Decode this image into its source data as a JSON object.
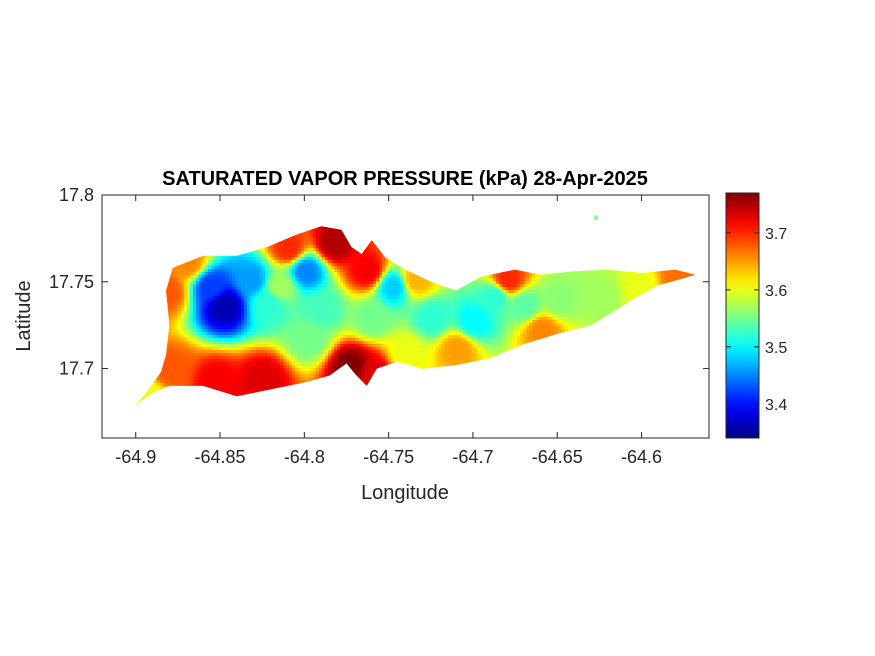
{
  "chart_data": {
    "type": "heatmap",
    "title": "SATURATED VAPOR PRESSURE (kPa) 28-Apr-2025",
    "xlabel": "Longitude",
    "ylabel": "Latitude",
    "xlim": [
      -64.92,
      -64.56
    ],
    "ylim": [
      17.66,
      17.8
    ],
    "xticks": [
      -64.9,
      -64.85,
      -64.8,
      -64.75,
      -64.7,
      -64.65,
      -64.6
    ],
    "xtick_labels": [
      "-64.9",
      "-64.85",
      "-64.8",
      "-64.75",
      "-64.7",
      "-64.65",
      "-64.6"
    ],
    "yticks": [
      17.7,
      17.75,
      17.8
    ],
    "ytick_labels": [
      "17.7",
      "17.75",
      "17.8"
    ],
    "colormap": "jet",
    "colorbar": {
      "range": [
        3.34,
        3.77
      ],
      "ticks": [
        3.4,
        3.5,
        3.6,
        3.7
      ],
      "tick_labels": [
        "3.4",
        "3.5",
        "3.6",
        "3.7"
      ],
      "placement": "right"
    },
    "grid": false,
    "island_outline": [
      [
        -64.9,
        17.679
      ],
      [
        -64.89,
        17.686
      ],
      [
        -64.88,
        17.69
      ],
      [
        -64.86,
        17.69
      ],
      [
        -64.84,
        17.684
      ],
      [
        -64.82,
        17.688
      ],
      [
        -64.8,
        17.692
      ],
      [
        -64.785,
        17.696
      ],
      [
        -64.775,
        17.703
      ],
      [
        -64.77,
        17.697
      ],
      [
        -64.763,
        17.69
      ],
      [
        -64.757,
        17.7
      ],
      [
        -64.745,
        17.704
      ],
      [
        -64.73,
        17.7
      ],
      [
        -64.71,
        17.702
      ],
      [
        -64.69,
        17.706
      ],
      [
        -64.67,
        17.714
      ],
      [
        -64.65,
        17.72
      ],
      [
        -64.63,
        17.725
      ],
      [
        -64.618,
        17.732
      ],
      [
        -64.605,
        17.74
      ],
      [
        -64.59,
        17.748
      ],
      [
        -64.575,
        17.752
      ],
      [
        -64.568,
        17.754
      ],
      [
        -64.58,
        17.757
      ],
      [
        -64.6,
        17.755
      ],
      [
        -64.62,
        17.757
      ],
      [
        -64.64,
        17.756
      ],
      [
        -64.66,
        17.754
      ],
      [
        -64.675,
        17.757
      ],
      [
        -64.695,
        17.753
      ],
      [
        -64.71,
        17.745
      ],
      [
        -64.725,
        17.75
      ],
      [
        -64.74,
        17.757
      ],
      [
        -64.752,
        17.764
      ],
      [
        -64.76,
        17.774
      ],
      [
        -64.766,
        17.766
      ],
      [
        -64.772,
        17.77
      ],
      [
        -64.778,
        17.78
      ],
      [
        -64.79,
        17.782
      ],
      [
        -64.805,
        17.777
      ],
      [
        -64.822,
        17.77
      ],
      [
        -64.84,
        17.765
      ],
      [
        -64.86,
        17.765
      ],
      [
        -64.878,
        17.758
      ],
      [
        -64.882,
        17.745
      ],
      [
        -64.88,
        17.725
      ],
      [
        -64.882,
        17.708
      ],
      [
        -64.885,
        17.698
      ],
      [
        -64.893,
        17.687
      ]
    ],
    "islet": [
      -64.627,
      17.787
    ],
    "field_points": [
      {
        "lon": -64.848,
        "lat": 17.737,
        "value": 3.36
      },
      {
        "lon": -64.856,
        "lat": 17.748,
        "value": 3.42
      },
      {
        "lon": -64.832,
        "lat": 17.752,
        "value": 3.46
      },
      {
        "lon": -64.8,
        "lat": 17.757,
        "value": 3.45
      },
      {
        "lon": -64.822,
        "lat": 17.738,
        "value": 3.52
      },
      {
        "lon": -64.79,
        "lat": 17.735,
        "value": 3.53
      },
      {
        "lon": -64.798,
        "lat": 17.718,
        "value": 3.55
      },
      {
        "lon": -64.76,
        "lat": 17.73,
        "value": 3.55
      },
      {
        "lon": -64.748,
        "lat": 17.748,
        "value": 3.48
      },
      {
        "lon": -64.725,
        "lat": 17.73,
        "value": 3.52
      },
      {
        "lon": -64.7,
        "lat": 17.728,
        "value": 3.5
      },
      {
        "lon": -64.688,
        "lat": 17.742,
        "value": 3.52
      },
      {
        "lon": -64.67,
        "lat": 17.737,
        "value": 3.54
      },
      {
        "lon": -64.65,
        "lat": 17.74,
        "value": 3.56
      },
      {
        "lon": -64.625,
        "lat": 17.742,
        "value": 3.57
      },
      {
        "lon": -64.6,
        "lat": 17.747,
        "value": 3.6
      },
      {
        "lon": -64.58,
        "lat": 17.752,
        "value": 3.67
      },
      {
        "lon": -64.783,
        "lat": 17.773,
        "value": 3.75
      },
      {
        "lon": -64.763,
        "lat": 17.757,
        "value": 3.72
      },
      {
        "lon": -64.773,
        "lat": 17.702,
        "value": 3.77
      },
      {
        "lon": -64.76,
        "lat": 17.698,
        "value": 3.73
      },
      {
        "lon": -64.853,
        "lat": 17.693,
        "value": 3.72
      },
      {
        "lon": -64.825,
        "lat": 17.695,
        "value": 3.73
      },
      {
        "lon": -64.88,
        "lat": 17.7,
        "value": 3.68
      },
      {
        "lon": -64.882,
        "lat": 17.745,
        "value": 3.68
      },
      {
        "lon": -64.87,
        "lat": 17.762,
        "value": 3.66
      },
      {
        "lon": -64.81,
        "lat": 17.77,
        "value": 3.7
      },
      {
        "lon": -64.735,
        "lat": 17.752,
        "value": 3.64
      },
      {
        "lon": -64.71,
        "lat": 17.712,
        "value": 3.65
      },
      {
        "lon": -64.68,
        "lat": 17.752,
        "value": 3.7
      },
      {
        "lon": -64.66,
        "lat": 17.723,
        "value": 3.66
      },
      {
        "lon": -64.893,
        "lat": 17.684,
        "value": 3.6
      },
      {
        "lon": -64.815,
        "lat": 17.748,
        "value": 3.57
      },
      {
        "lon": -64.74,
        "lat": 17.71,
        "value": 3.6
      }
    ]
  }
}
